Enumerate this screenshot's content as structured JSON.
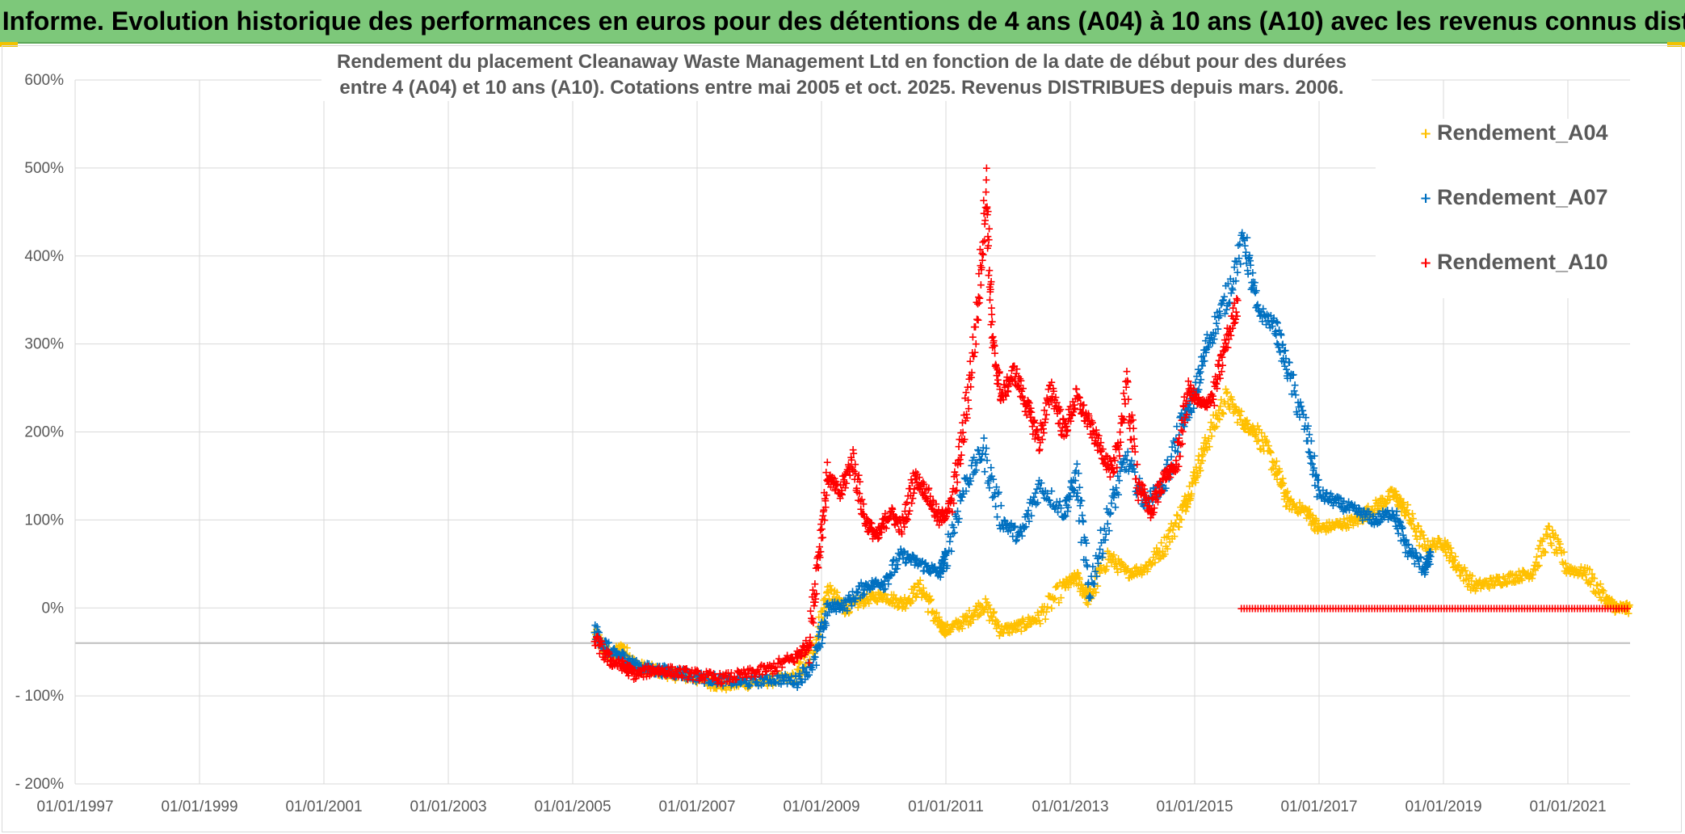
{
  "banner": {
    "title": "ADAM Informe. Evolution historique des performances en euros pour des détentions de 4 ans (A04) à 10 ans (A10) avec les revenus connus distribués"
  },
  "colors": {
    "banner_bg": "#7dc87a",
    "A04": "#ffc000",
    "A07": "#0070c0",
    "A10": "#ff0000",
    "grid": "#d9d9d9",
    "text": "#595959"
  },
  "chart_data": {
    "type": "scatter",
    "title_lines": [
      "Rendement du placement Cleanaway Waste Management Ltd en fonction de la date de début pour des durées",
      "entre 4 (A04) et 10 ans (A10). Cotations entre mai 2005 et oct. 2025. Revenus DISTRIBUES depuis mars. 2006."
    ],
    "xlim": [
      1997.0,
      2022.0
    ],
    "x_ticks": [
      1997,
      1999,
      2001,
      2003,
      2005,
      2007,
      2009,
      2011,
      2013,
      2015,
      2017,
      2019,
      2021
    ],
    "x_tick_labels": [
      "01/01/1997",
      "01/01/1999",
      "01/01/2001",
      "01/01/2003",
      "01/01/2005",
      "01/01/2007",
      "01/01/2009",
      "01/01/2011",
      "01/01/2013",
      "01/01/2015",
      "01/01/2017",
      "01/01/2019",
      "01/01/2021"
    ],
    "ylim": [
      -200,
      600
    ],
    "y_ticks": [
      600,
      500,
      400,
      300,
      200,
      100,
      0,
      -100,
      -200
    ],
    "y_tick_labels": [
      "600%",
      "500%",
      "400%",
      "300%",
      "200%",
      "100%",
      "0%",
      "- 100%",
      "- 200%"
    ],
    "legend": [
      "Rendement_A04",
      "Rendement_A07",
      "Rendement_A10"
    ],
    "legend_position": "top-right",
    "marker": "+",
    "series": [
      {
        "name": "Rendement_A04",
        "x": [
          2005.35,
          2005.6,
          2005.8,
          2006.0,
          2006.3,
          2006.6,
          2007.0,
          2007.4,
          2007.8,
          2008.2,
          2008.6,
          2008.9,
          2009.1,
          2009.4,
          2009.7,
          2010.0,
          2010.3,
          2010.6,
          2010.9,
          2011.0,
          2011.3,
          2011.6,
          2011.9,
          2012.2,
          2012.5,
          2012.9,
          2013.1,
          2013.3,
          2013.6,
          2013.9,
          2014.2,
          2014.5,
          2014.8,
          2015.0,
          2015.2,
          2015.5,
          2015.8,
          2016.0,
          2016.3,
          2016.5,
          2016.8,
          2017.0,
          2017.3,
          2017.6,
          2017.9,
          2018.2,
          2018.4,
          2018.7,
          2019.0,
          2019.2,
          2019.5,
          2019.8,
          2020.1,
          2020.4,
          2020.7,
          2021.0,
          2021.3,
          2021.6,
          2021.8,
          2022.0
        ],
        "y": [
          -30,
          -55,
          -45,
          -65,
          -70,
          -75,
          -80,
          -88,
          -85,
          -82,
          -78,
          -40,
          20,
          0,
          10,
          15,
          5,
          25,
          -20,
          -25,
          -15,
          5,
          -25,
          -20,
          -10,
          25,
          35,
          10,
          60,
          40,
          45,
          70,
          110,
          150,
          190,
          240,
          210,
          200,
          160,
          120,
          110,
          90,
          95,
          100,
          115,
          130,
          110,
          70,
          75,
          50,
          25,
          30,
          35,
          40,
          85,
          45,
          40,
          10,
          0,
          0
        ]
      },
      {
        "name": "Rendement_A07",
        "x": [
          2005.35,
          2005.6,
          2005.8,
          2006.0,
          2006.3,
          2006.6,
          2007.0,
          2007.4,
          2007.8,
          2008.2,
          2008.6,
          2008.9,
          2009.1,
          2009.4,
          2009.7,
          2010.0,
          2010.3,
          2010.6,
          2010.9,
          2011.0,
          2011.3,
          2011.6,
          2011.9,
          2012.2,
          2012.5,
          2012.9,
          2013.1,
          2013.3,
          2013.6,
          2013.9,
          2014.2,
          2014.5,
          2014.8,
          2015.0,
          2015.2,
          2015.5,
          2015.8,
          2016.0,
          2016.3,
          2016.5,
          2016.8,
          2017.0,
          2017.3,
          2017.6,
          2017.9,
          2018.2,
          2018.4,
          2018.7,
          2018.8
        ],
        "y": [
          -25,
          -50,
          -55,
          -65,
          -70,
          -72,
          -78,
          -82,
          -84,
          -80,
          -82,
          -60,
          0,
          5,
          25,
          30,
          60,
          50,
          40,
          60,
          140,
          180,
          100,
          80,
          140,
          110,
          150,
          20,
          100,
          170,
          120,
          140,
          210,
          240,
          300,
          350,
          420,
          340,
          320,
          270,
          200,
          130,
          120,
          110,
          100,
          110,
          70,
          45,
          60
        ]
      },
      {
        "name": "Rendement_A10",
        "x": [
          2005.35,
          2005.6,
          2005.8,
          2006.0,
          2006.3,
          2006.6,
          2007.0,
          2007.4,
          2007.8,
          2008.2,
          2008.6,
          2008.8,
          2008.95,
          2009.1,
          2009.3,
          2009.5,
          2009.7,
          2009.9,
          2010.1,
          2010.3,
          2010.5,
          2010.7,
          2010.9,
          2011.1,
          2011.3,
          2011.5,
          2011.65,
          2011.75,
          2011.9,
          2012.1,
          2012.3,
          2012.5,
          2012.7,
          2012.9,
          2013.1,
          2013.3,
          2013.5,
          2013.7,
          2013.9,
          2014.1,
          2014.3,
          2014.5,
          2014.7,
          2014.9,
          2015.1,
          2015.3,
          2015.5,
          2015.7
        ],
        "y": [
          -35,
          -60,
          -65,
          -75,
          -70,
          -72,
          -76,
          -80,
          -75,
          -68,
          -55,
          -40,
          60,
          150,
          130,
          170,
          100,
          80,
          110,
          90,
          150,
          130,
          100,
          120,
          210,
          330,
          480,
          300,
          240,
          270,
          230,
          190,
          250,
          200,
          240,
          210,
          180,
          150,
          250,
          140,
          110,
          150,
          160,
          250,
          230,
          240,
          300,
          350
        ]
      },
      {
        "name": "Rendement_A10 (0%)",
        "x": [
          2015.75,
          2022.0
        ],
        "y": [
          0,
          0
        ]
      }
    ]
  }
}
